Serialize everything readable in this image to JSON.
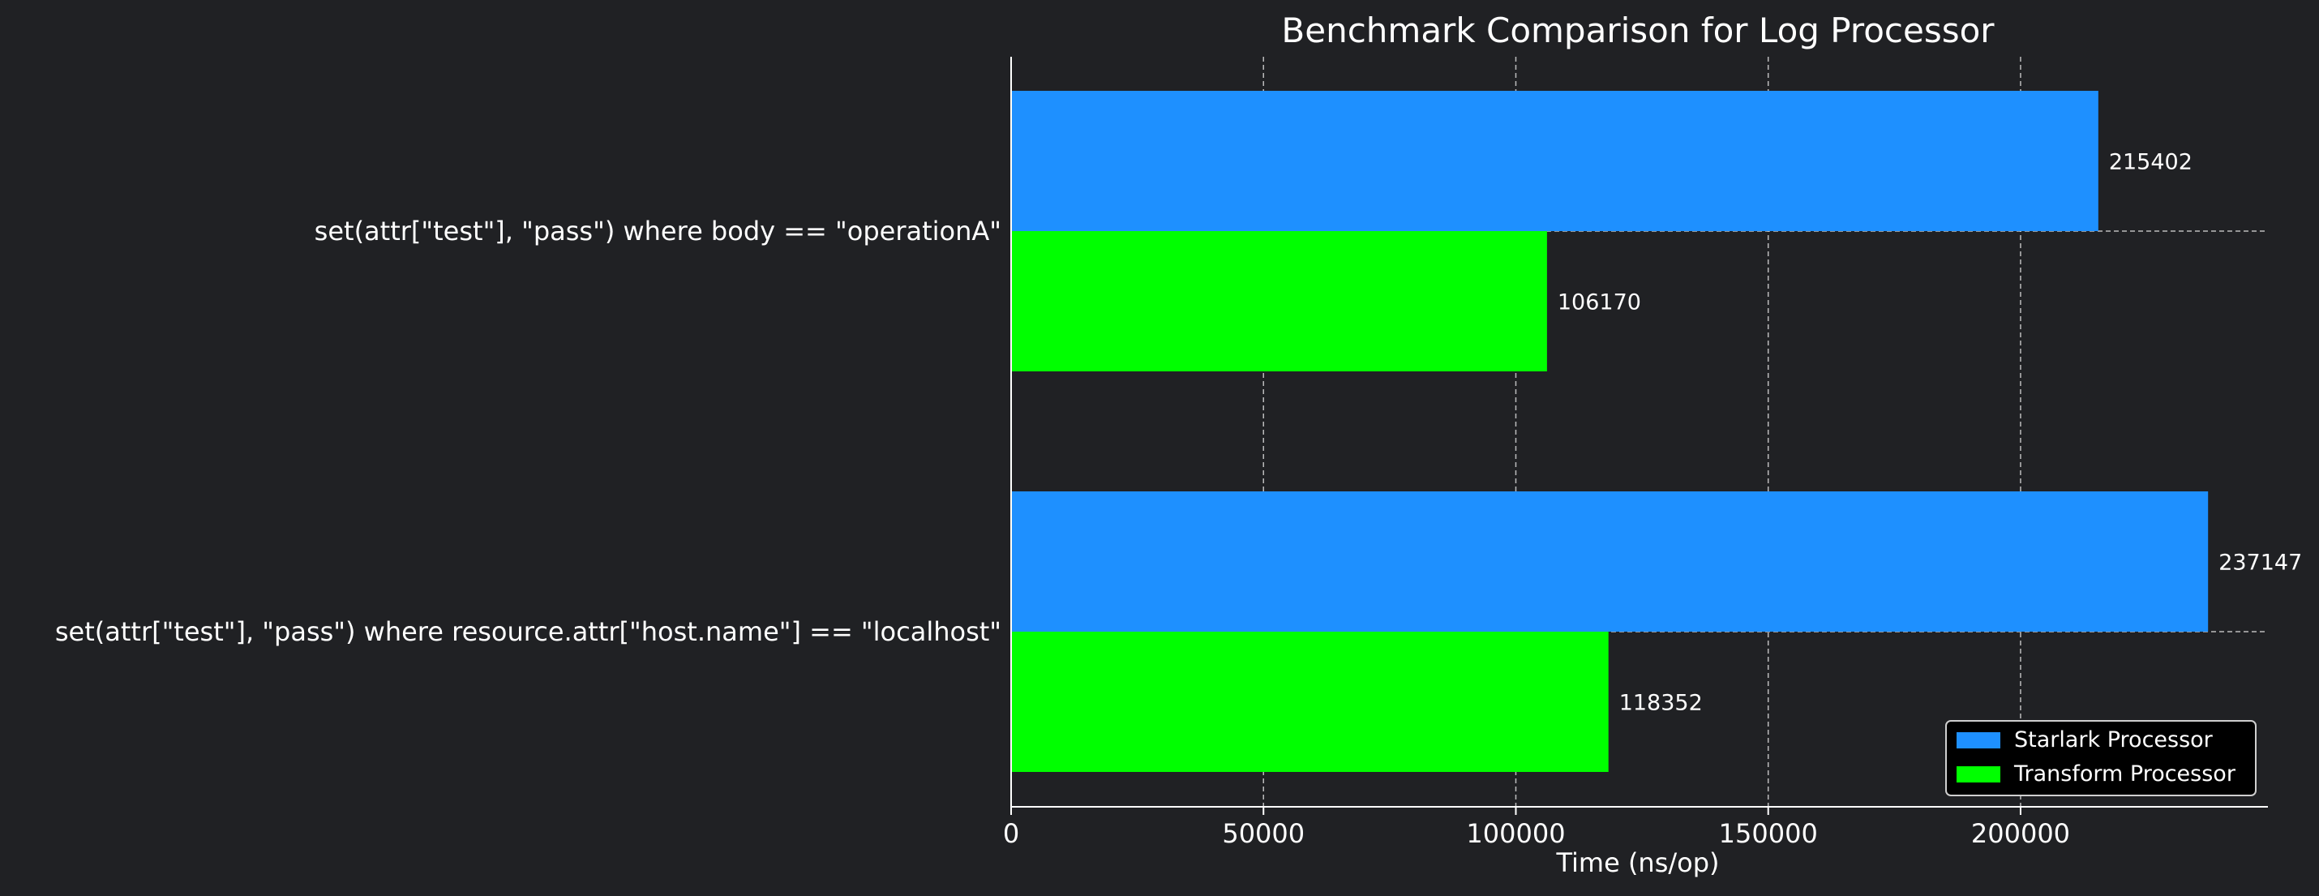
{
  "chart_data": {
    "type": "bar",
    "orientation": "horizontal",
    "title": "Benchmark Comparison for Log Processor",
    "xlabel": "Time (ns/op)",
    "ylabel": "",
    "categories": [
      "set(attr[\"test\"], \"pass\") where body == \"operationA\"",
      "set(attr[\"test\"], \"pass\") where resource.attr[\"host.name\"] == \"localhost\""
    ],
    "series": [
      {
        "name": "Starlark Processor",
        "color": "#1E90FF",
        "values": [
          215402,
          237147
        ]
      },
      {
        "name": "Transform Processor",
        "color": "#00FF00",
        "values": [
          106170,
          118352
        ]
      }
    ],
    "xlim": [
      0,
      249004
    ],
    "xticks": [
      0,
      50000,
      100000,
      150000,
      200000
    ],
    "xtick_labels": [
      "0",
      "50000",
      "100000",
      "150000",
      "200000"
    ],
    "data_labels": [
      "215402",
      "106170",
      "237147",
      "118352"
    ],
    "grid": true,
    "legend_position": "lower-right",
    "colors": {
      "background": "#202124",
      "text": "#FFFFFF",
      "axis": "#FFFFFF",
      "grid": "#D8D8D8",
      "legend_background": "#000000",
      "legend_border": "#CFCFCF"
    }
  }
}
